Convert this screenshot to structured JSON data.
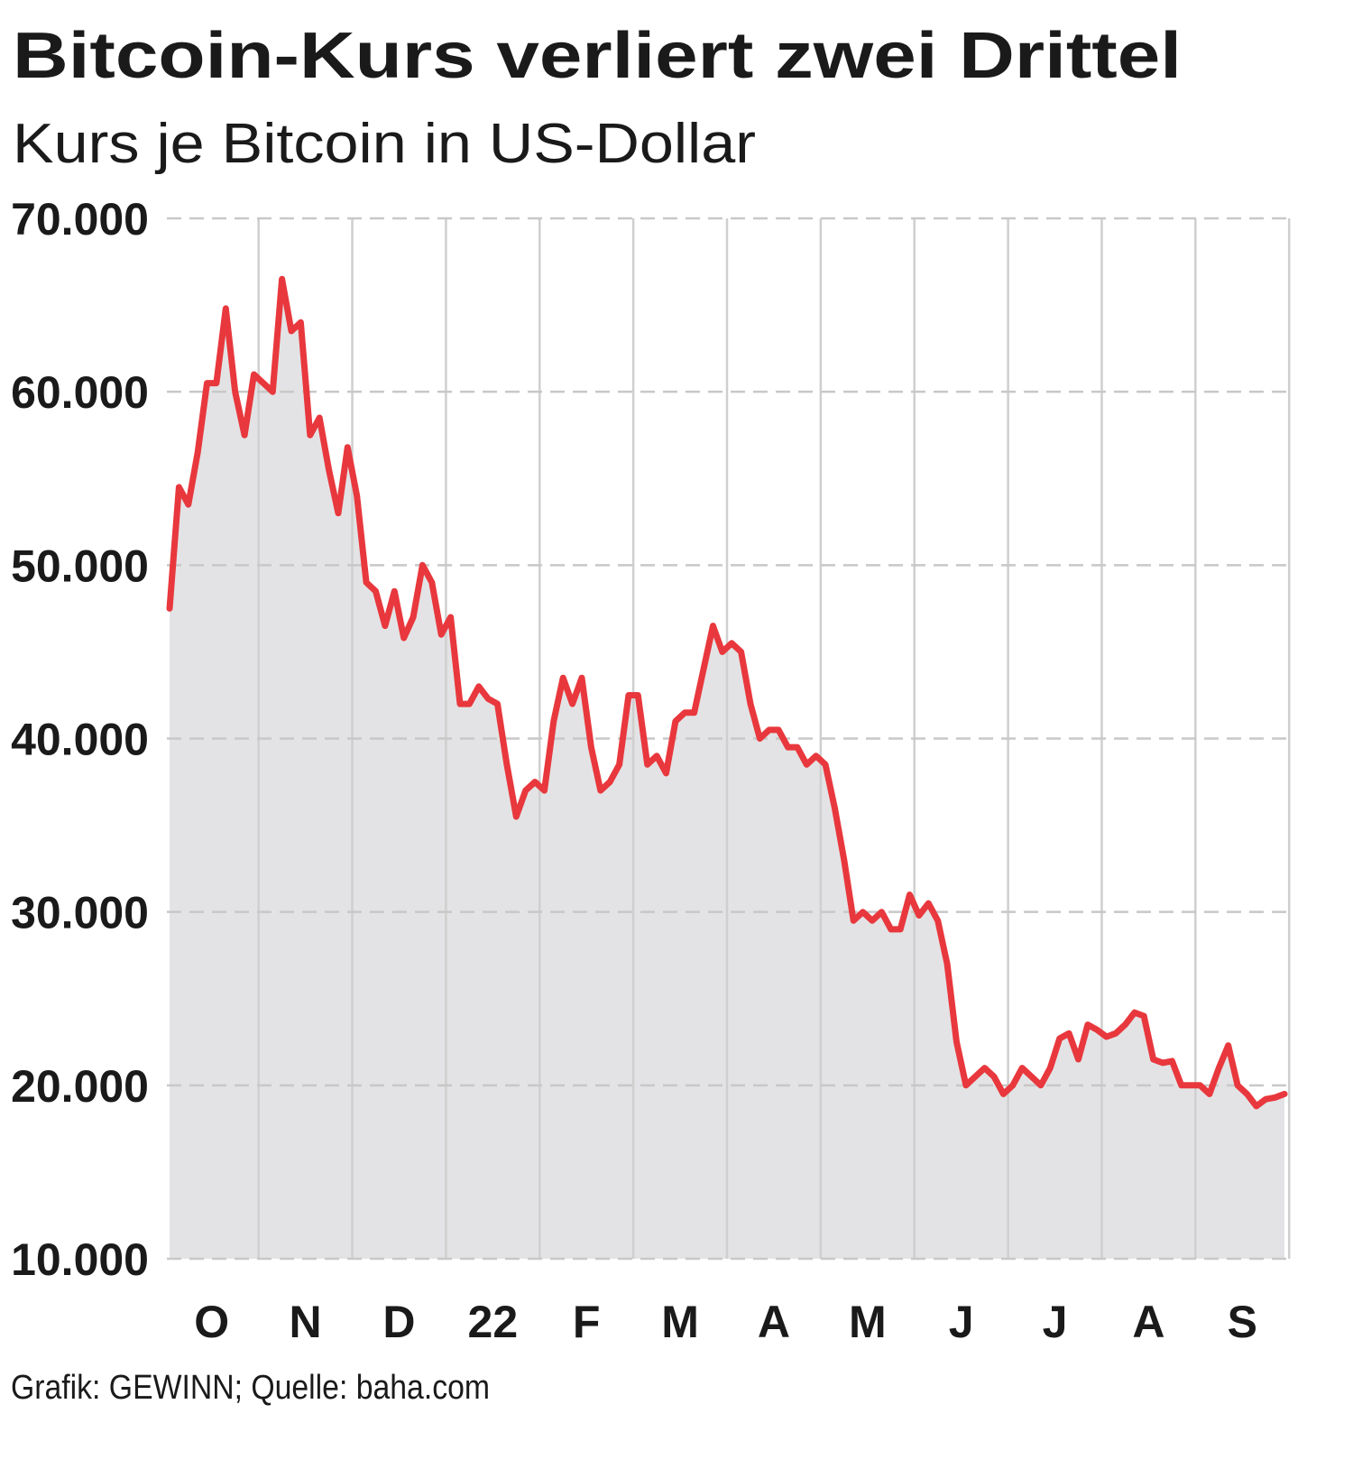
{
  "chart_data": {
    "type": "line",
    "title": "Bitcoin-Kurs verliert zwei Drittel",
    "subtitle": "Kurs je Bitcoin in US-Dollar",
    "source": "Grafik: GEWINN; Quelle: baha.com",
    "categories": [
      null,
      null,
      null,
      null,
      "O",
      null,
      null,
      null,
      null,
      null,
      null,
      null,
      null,
      null,
      "N",
      null,
      null,
      null,
      null,
      null,
      null,
      null,
      null,
      null,
      "D",
      null,
      null,
      null,
      null,
      null,
      null,
      null,
      null,
      null,
      "22",
      null,
      null,
      null,
      null,
      null,
      null,
      null,
      null,
      null,
      "F",
      null,
      null,
      null,
      null,
      null,
      null,
      null,
      null,
      null,
      "M",
      null,
      null,
      null,
      null,
      null,
      null,
      null,
      null,
      null,
      "A",
      null,
      null,
      null,
      null,
      null,
      null,
      null,
      null,
      null,
      "M",
      null,
      null,
      null,
      null,
      null,
      null,
      null,
      null,
      null,
      "J",
      null,
      null,
      null,
      null,
      null,
      null,
      null,
      null,
      null,
      "J",
      null,
      null,
      null,
      null,
      null,
      null,
      null,
      null,
      null,
      "A",
      null,
      null,
      null,
      null,
      null,
      null,
      null,
      null,
      null,
      "S",
      null,
      null,
      null,
      null,
      null
    ],
    "series": [
      {
        "color": "#e8383d",
        "values": [
          47500,
          54500,
          53500,
          56500,
          60500,
          60500,
          64800,
          60000,
          57500,
          61000,
          60500,
          60000,
          66500,
          63500,
          64000,
          57500,
          58500,
          55500,
          53000,
          56800,
          54000,
          49000,
          48500,
          46500,
          48500,
          45800,
          47000,
          50000,
          49000,
          46000,
          47000,
          42000,
          42000,
          43000,
          42300,
          42000,
          38500,
          35500,
          37000,
          37500,
          37000,
          41000,
          43500,
          42000,
          43500,
          39500,
          37000,
          37500,
          38500,
          42500,
          42500,
          38500,
          39000,
          38000,
          41000,
          41500,
          41500,
          44000,
          46500,
          45000,
          45500,
          45000,
          42000,
          40000,
          40500,
          40500,
          39500,
          39500,
          38500,
          39000,
          38500,
          36000,
          33000,
          29500,
          30000,
          29500,
          30000,
          29000,
          29000,
          31000,
          29800,
          30500,
          29500,
          27000,
          22500,
          20000,
          20500,
          21000,
          20500,
          19500,
          20000,
          21000,
          20500,
          20000,
          21000,
          22700,
          23000,
          21500,
          23500,
          23200,
          22800,
          23000,
          23500,
          24200,
          24000,
          21500,
          21300,
          21400,
          20000,
          20000,
          20000,
          19500,
          21000,
          22300,
          20000,
          19500,
          18800,
          19200,
          19300,
          19500
        ]
      }
    ],
    "area_color": "#e3e3e5",
    "ylim": [
      10000,
      70000
    ],
    "yticks": [
      {
        "value": 10000,
        "label": "10.000"
      },
      {
        "value": 20000,
        "label": "20.000"
      },
      {
        "value": 30000,
        "label": "30.000"
      },
      {
        "value": 40000,
        "label": "40.000"
      },
      {
        "value": 50000,
        "label": "50.000"
      },
      {
        "value": 60000,
        "label": "60.000"
      },
      {
        "value": 70000,
        "label": "70.000"
      }
    ],
    "grid": true
  }
}
